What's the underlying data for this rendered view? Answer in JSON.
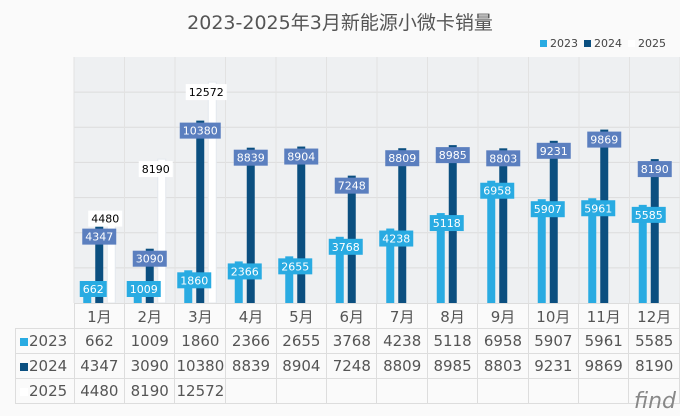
{
  "chart_data": {
    "type": "bar",
    "title": "2023-2025年3月新能源小微卡销量",
    "categories": [
      "1月",
      "2月",
      "3月",
      "4月",
      "5月",
      "6月",
      "7月",
      "8月",
      "9月",
      "10月",
      "11月",
      "12月"
    ],
    "series": [
      {
        "name": "2023",
        "color": "#29abe2",
        "label_bg": "#29abe2",
        "values": [
          662,
          1009,
          1860,
          2366,
          2655,
          3768,
          4238,
          5118,
          6958,
          5907,
          5961,
          5585
        ]
      },
      {
        "name": "2024",
        "color": "#0b4f80",
        "label_bg": "#5b7fbf",
        "values": [
          4347,
          3090,
          10380,
          8839,
          8904,
          7248,
          8809,
          8985,
          8803,
          9231,
          9869,
          8190
        ]
      },
      {
        "name": "2025",
        "color": "#ffffff",
        "label_bg": "#ffffff",
        "values": [
          4480,
          8190,
          12572,
          null,
          null,
          null,
          null,
          null,
          null,
          null,
          null,
          null
        ]
      }
    ],
    "ylim": [
      0,
      14000
    ],
    "legend": "top-right",
    "data_table": true
  },
  "watermark": "find方得网"
}
